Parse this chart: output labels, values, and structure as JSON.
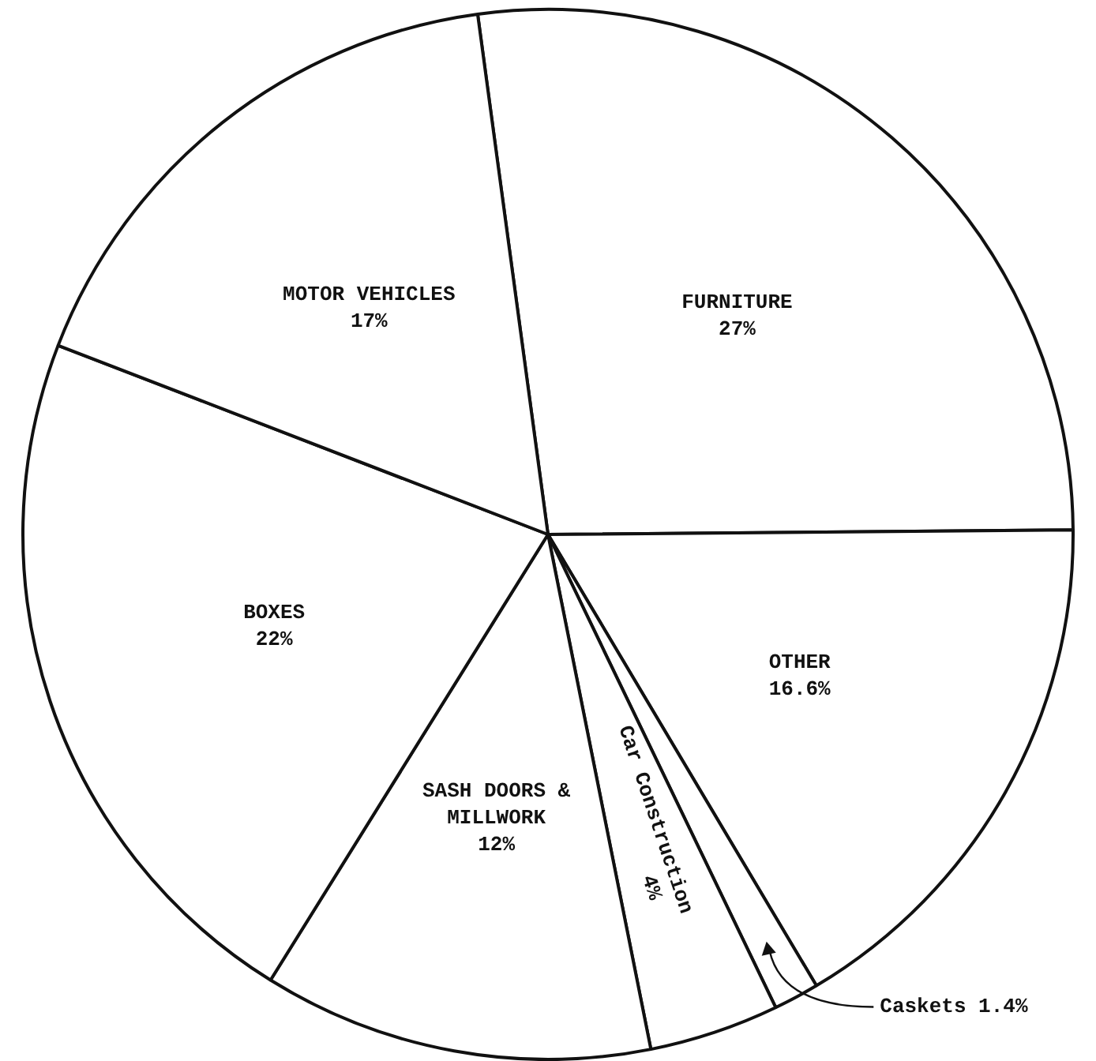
{
  "chart_data": {
    "type": "pie",
    "categories": [
      "FURNITURE",
      "OTHER",
      "Caskets",
      "Car Construction",
      "SASH DOORS & MILLWORK",
      "BOXES",
      "MOTOR VEHICLES"
    ],
    "values": [
      27,
      16.6,
      1.4,
      4,
      12,
      22,
      17
    ],
    "value_labels": [
      "27%",
      "16.6%",
      "1.4%",
      "4%",
      "12%",
      "22%",
      "17%"
    ],
    "colors": [
      "#ffffff",
      "#ffffff",
      "#ffffff",
      "#ffffff",
      "#ffffff",
      "#ffffff",
      "#ffffff"
    ]
  }
}
